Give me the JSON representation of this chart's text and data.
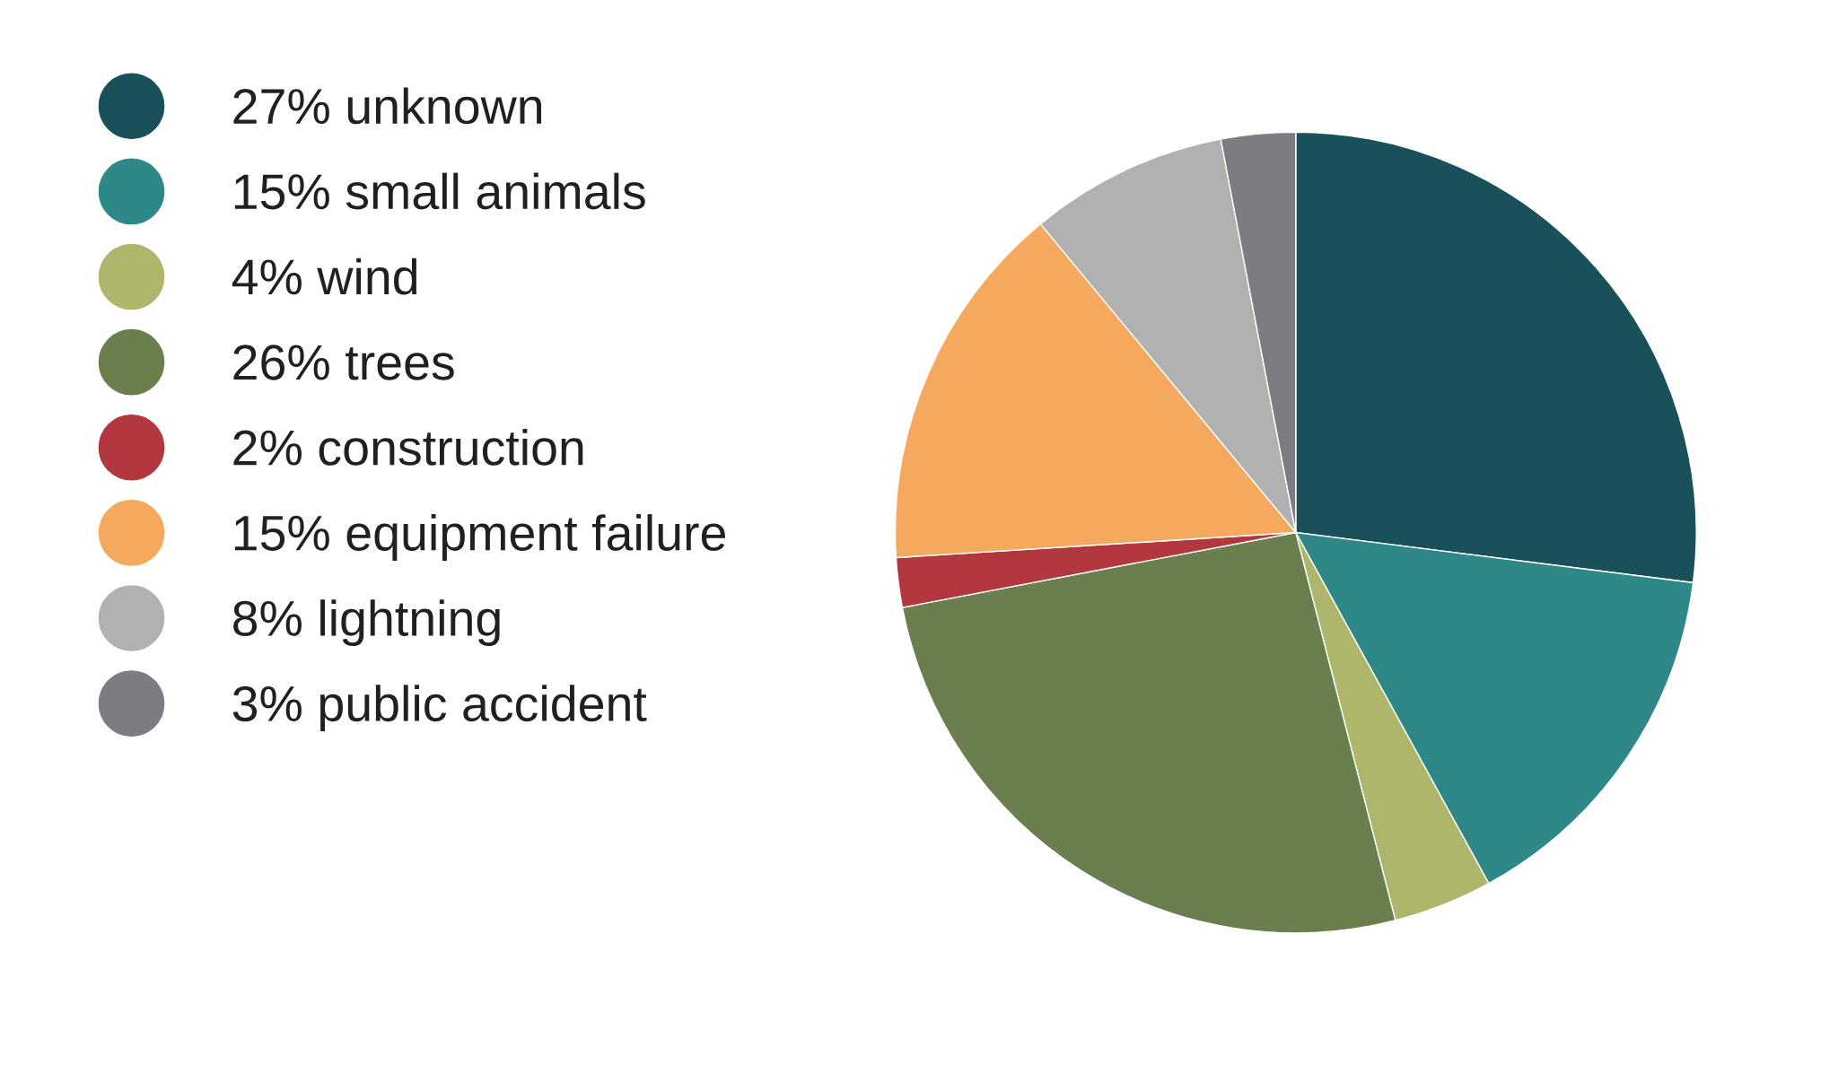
{
  "chart_data": {
    "type": "pie",
    "categories": [
      "27% unknown",
      "15% small animals",
      "4% wind",
      "26% trees",
      "2% construction",
      "15% equipment failure",
      "8% lightning",
      "3% public accident"
    ],
    "values": [
      27,
      15,
      4,
      26,
      2,
      15,
      8,
      3
    ],
    "colors": [
      "#1a505a",
      "#2e8888",
      "#adb66a",
      "#6b7f4e",
      "#b2373e",
      "#f5a95e",
      "#b1b1b1",
      "#7c7d81"
    ],
    "legend": "left"
  }
}
